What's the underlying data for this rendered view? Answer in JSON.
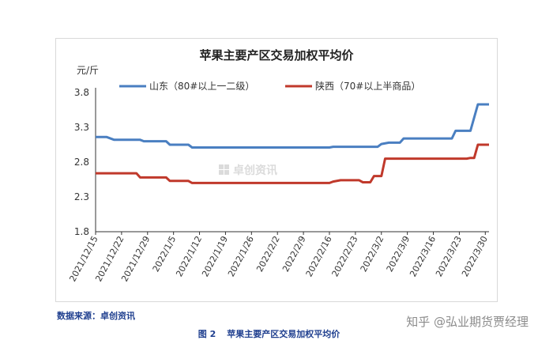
{
  "chart_data": {
    "type": "line",
    "title": "苹果主要产区交易加权平均价",
    "ylabel": "元/斤",
    "xlabel": "",
    "ylim": [
      1.8,
      3.8
    ],
    "yticks": [
      "3.8",
      "3.3",
      "2.8",
      "2.3",
      "1.8"
    ],
    "x": [
      "2021/12/15",
      "2021/12/22",
      "2021/12/29",
      "2022/1/5",
      "2022/1/12",
      "2022/1/19",
      "2022/1/26",
      "2022/2/2",
      "2022/2/9",
      "2022/2/16",
      "2022/2/23",
      "2022/3/2",
      "2022/3/9",
      "2022/3/16",
      "2022/3/23",
      "2022/3/30"
    ],
    "grid": false,
    "legend_position": "top",
    "series": [
      {
        "name": "山东（80#以上一二级）",
        "color": "#4a7fc1",
        "points": [
          [
            "2021/12/15",
            3.16
          ],
          [
            "2021/12/18",
            3.16
          ],
          [
            "2021/12/20",
            3.12
          ],
          [
            "2021/12/27",
            3.12
          ],
          [
            "2021/12/28",
            3.1
          ],
          [
            "2022/1/3",
            3.1
          ],
          [
            "2022/1/4",
            3.05
          ],
          [
            "2022/1/9",
            3.05
          ],
          [
            "2022/1/10",
            3.01
          ],
          [
            "2022/2/16",
            3.01
          ],
          [
            "2022/2/17",
            3.02
          ],
          [
            "2022/3/1",
            3.02
          ],
          [
            "2022/3/2",
            3.06
          ],
          [
            "2022/3/4",
            3.08
          ],
          [
            "2022/3/7",
            3.08
          ],
          [
            "2022/3/8",
            3.14
          ],
          [
            "2022/3/21",
            3.14
          ],
          [
            "2022/3/22",
            3.25
          ],
          [
            "2022/3/26",
            3.25
          ],
          [
            "2022/3/28",
            3.63
          ],
          [
            "2022/3/31",
            3.63
          ]
        ]
      },
      {
        "name": "陕西（70#以上半商品）",
        "color": "#c0392b",
        "points": [
          [
            "2021/12/15",
            2.64
          ],
          [
            "2021/12/26",
            2.64
          ],
          [
            "2021/12/27",
            2.58
          ],
          [
            "2022/1/3",
            2.58
          ],
          [
            "2022/1/4",
            2.53
          ],
          [
            "2022/1/9",
            2.53
          ],
          [
            "2022/1/10",
            2.5
          ],
          [
            "2022/2/16",
            2.5
          ],
          [
            "2022/2/17",
            2.52
          ],
          [
            "2022/2/19",
            2.54
          ],
          [
            "2022/2/24",
            2.54
          ],
          [
            "2022/2/25",
            2.51
          ],
          [
            "2022/2/27",
            2.51
          ],
          [
            "2022/2/28",
            2.6
          ],
          [
            "2022/3/2",
            2.6
          ],
          [
            "2022/3/3",
            2.85
          ],
          [
            "2022/3/25",
            2.85
          ],
          [
            "2022/3/26",
            2.86
          ],
          [
            "2022/3/27",
            2.86
          ],
          [
            "2022/3/28",
            3.05
          ],
          [
            "2022/3/31",
            3.05
          ]
        ]
      }
    ]
  },
  "watermark": {
    "text": "卓创资讯"
  },
  "footer": {
    "source": "数据来源：卓创资讯",
    "figure_label": "图 2",
    "figure_title": "苹果主要产区交易加权平均价",
    "platform_mark": "知乎 @弘业期货贾经理"
  }
}
